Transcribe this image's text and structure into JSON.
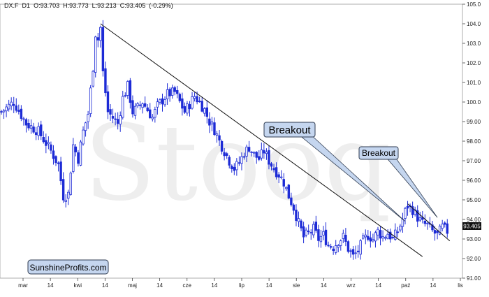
{
  "header": {
    "symbol": "DX.F",
    "interval": "D1",
    "open": "O:93.703",
    "high": "H:93.773",
    "low": "L:93.213",
    "close": "C:93.405",
    "change": "(-0.29%)"
  },
  "watermark": "Stooq",
  "brand_label": "SunshineProfits.com",
  "last_price_label": "93.405",
  "colors": {
    "candle_up": "#1d2bd6",
    "candle_down": "#1d2bd6",
    "trendline": "#111111",
    "callout_fill": "#c5d6ef",
    "callout_border": "#2d3a4f",
    "price_tag_bg": "#111111"
  },
  "chart_data": {
    "type": "candlestick",
    "y_axis_position": "right",
    "ylim": [
      91.0,
      105.0
    ],
    "y_ticks": [
      "91.00",
      "92.00",
      "93.00",
      "94.00",
      "95.00",
      "96.00",
      "97.00",
      "98.00",
      "99.00",
      "100.0",
      "101.0",
      "102.0",
      "103.0",
      "104.0",
      "105.0"
    ],
    "x_ticks": [
      "mar",
      "14",
      "kwi",
      "14",
      "maj",
      "14",
      "cze",
      "14",
      "lip",
      "14",
      "sie",
      "14",
      "wrz",
      "14",
      "paź",
      "14",
      "lis"
    ],
    "close_path": [
      [
        0,
        99.5
      ],
      [
        5,
        100.0
      ],
      [
        10,
        98.9
      ],
      [
        15,
        98.5
      ],
      [
        20,
        97.5
      ],
      [
        23,
        96.8
      ],
      [
        25,
        95.2
      ],
      [
        27,
        95.3
      ],
      [
        29,
        97.8
      ],
      [
        31,
        97.1
      ],
      [
        33,
        98.5
      ],
      [
        35,
        99.4
      ],
      [
        37,
        101.8
      ],
      [
        38,
        103.5
      ],
      [
        39,
        103.2
      ],
      [
        40,
        103.8
      ],
      [
        41,
        101.5
      ],
      [
        43,
        99.5
      ],
      [
        45,
        99.2
      ],
      [
        47,
        98.9
      ],
      [
        49,
        100.2
      ],
      [
        51,
        100.8
      ],
      [
        53,
        99.5
      ],
      [
        55,
        99.7
      ],
      [
        57,
        100.0
      ],
      [
        59,
        99.6
      ],
      [
        61,
        99.2
      ],
      [
        63,
        99.8
      ],
      [
        65,
        100.1
      ],
      [
        67,
        100.4
      ],
      [
        70,
        100.5
      ],
      [
        72,
        100.0
      ],
      [
        74,
        99.5
      ],
      [
        76,
        99.9
      ],
      [
        78,
        100.3
      ],
      [
        80,
        100.0
      ],
      [
        82,
        99.6
      ],
      [
        84,
        99.0
      ],
      [
        86,
        98.6
      ],
      [
        88,
        98.0
      ],
      [
        90,
        97.5
      ],
      [
        92,
        97.0
      ],
      [
        94,
        96.6
      ],
      [
        96,
        96.9
      ],
      [
        98,
        97.4
      ],
      [
        100,
        97.7
      ],
      [
        102,
        97.3
      ],
      [
        104,
        97.1
      ],
      [
        106,
        97.5
      ],
      [
        108,
        97.0
      ],
      [
        110,
        96.6
      ],
      [
        112,
        96.3
      ],
      [
        114,
        95.9
      ],
      [
        116,
        95.2
      ],
      [
        118,
        94.6
      ],
      [
        120,
        93.8
      ],
      [
        122,
        93.1
      ],
      [
        124,
        93.3
      ],
      [
        126,
        93.5
      ],
      [
        128,
        93.0
      ],
      [
        130,
        93.2
      ],
      [
        132,
        92.7
      ],
      [
        134,
        92.6
      ],
      [
        136,
        92.9
      ],
      [
        138,
        93.1
      ],
      [
        140,
        92.5
      ],
      [
        142,
        92.1
      ],
      [
        144,
        92.4
      ],
      [
        146,
        92.9
      ],
      [
        148,
        93.2
      ],
      [
        150,
        93.0
      ],
      [
        152,
        93.4
      ],
      [
        154,
        93.1
      ],
      [
        156,
        93.3
      ],
      [
        158,
        93.0
      ],
      [
        160,
        93.4
      ],
      [
        162,
        94.0
      ],
      [
        163,
        94.4
      ],
      [
        164,
        94.7
      ],
      [
        166,
        94.5
      ],
      [
        168,
        94.1
      ],
      [
        170,
        93.8
      ],
      [
        172,
        93.7
      ],
      [
        174,
        93.4
      ],
      [
        176,
        93.2
      ],
      [
        178,
        93.6
      ],
      [
        180,
        93.4
      ]
    ],
    "trendlines": [
      {
        "from": [
          40,
          104.0
        ],
        "to": [
          170,
          92.1
        ]
      },
      {
        "from": [
          164,
          94.8
        ],
        "to": [
          181,
          92.9
        ]
      }
    ],
    "annotations": [
      {
        "text": "Breakout",
        "points_to": [
          163,
          93.9
        ]
      },
      {
        "text": "Breakout",
        "points_to": [
          176,
          94.1
        ]
      }
    ]
  }
}
